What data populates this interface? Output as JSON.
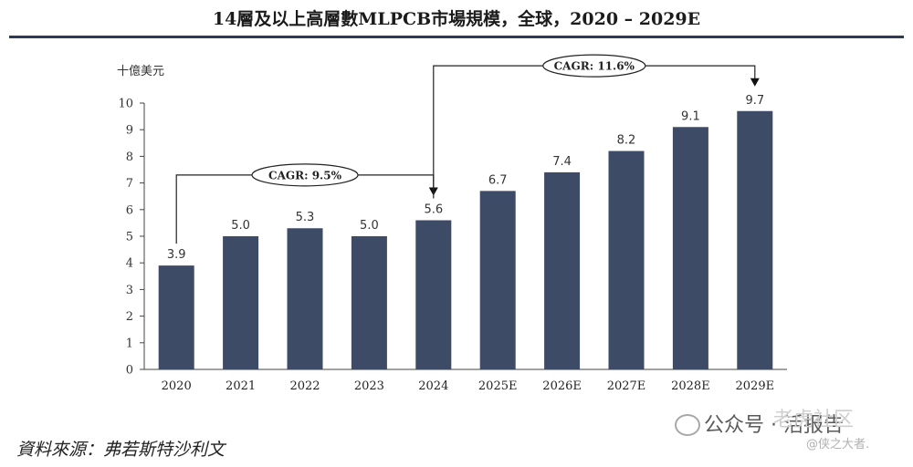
{
  "title": "14層及以上高層數MLPCB市場規模，全球，2020 – 2029E",
  "source": "資料來源：弗若斯特沙利文",
  "watermark": {
    "main": "公众号 · 活报告",
    "overlay": "老虎社区",
    "sub": "@侠之大者."
  },
  "colors": {
    "bar": "#3d4b67",
    "rule": "#2b3b57",
    "text": "#333333"
  },
  "chart_data": {
    "type": "bar",
    "ylabel": "十億美元",
    "ylim": [
      0,
      10
    ],
    "yticks": [
      "0",
      "1",
      "2",
      "3",
      "4",
      "5",
      "6",
      "7",
      "8",
      "9",
      "10"
    ],
    "categories": [
      "2020",
      "2021",
      "2022",
      "2023",
      "2024",
      "2025E",
      "2026E",
      "2027E",
      "2028E",
      "2029E"
    ],
    "values": [
      3.9,
      5.0,
      5.3,
      5.0,
      5.6,
      6.7,
      7.4,
      8.2,
      9.1,
      9.7
    ],
    "value_labels": [
      "3.9",
      "5.0",
      "5.3",
      "5.0",
      "5.6",
      "6.7",
      "7.4",
      "8.2",
      "9.1",
      "9.7"
    ],
    "annotations": [
      {
        "label": "CAGR: 9.5%",
        "from_index": 0,
        "to_index": 4,
        "level": 7.3
      },
      {
        "label": "CAGR: 11.6%",
        "from_index": 4,
        "to_index": 9,
        "level": 11.4
      }
    ]
  }
}
